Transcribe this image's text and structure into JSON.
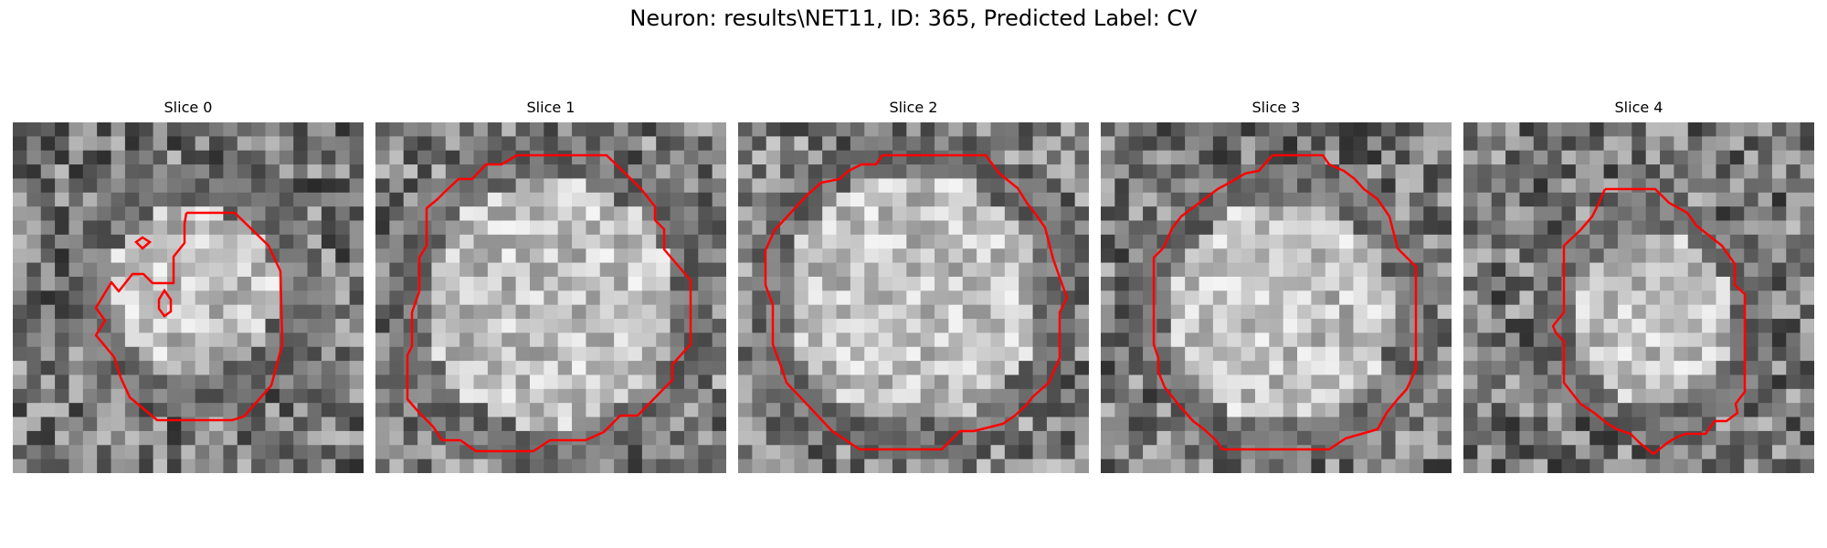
{
  "figure": {
    "title": "Neuron: results\\NET11, ID: 365, Predicted Label: CV"
  },
  "colors": {
    "contour": "#ff0000",
    "background": "#ffffff"
  },
  "panels": [
    {
      "title": "Slice 0"
    },
    {
      "title": "Slice 1"
    },
    {
      "title": "Slice 2"
    },
    {
      "title": "Slice 3"
    },
    {
      "title": "Slice 4"
    }
  ]
}
